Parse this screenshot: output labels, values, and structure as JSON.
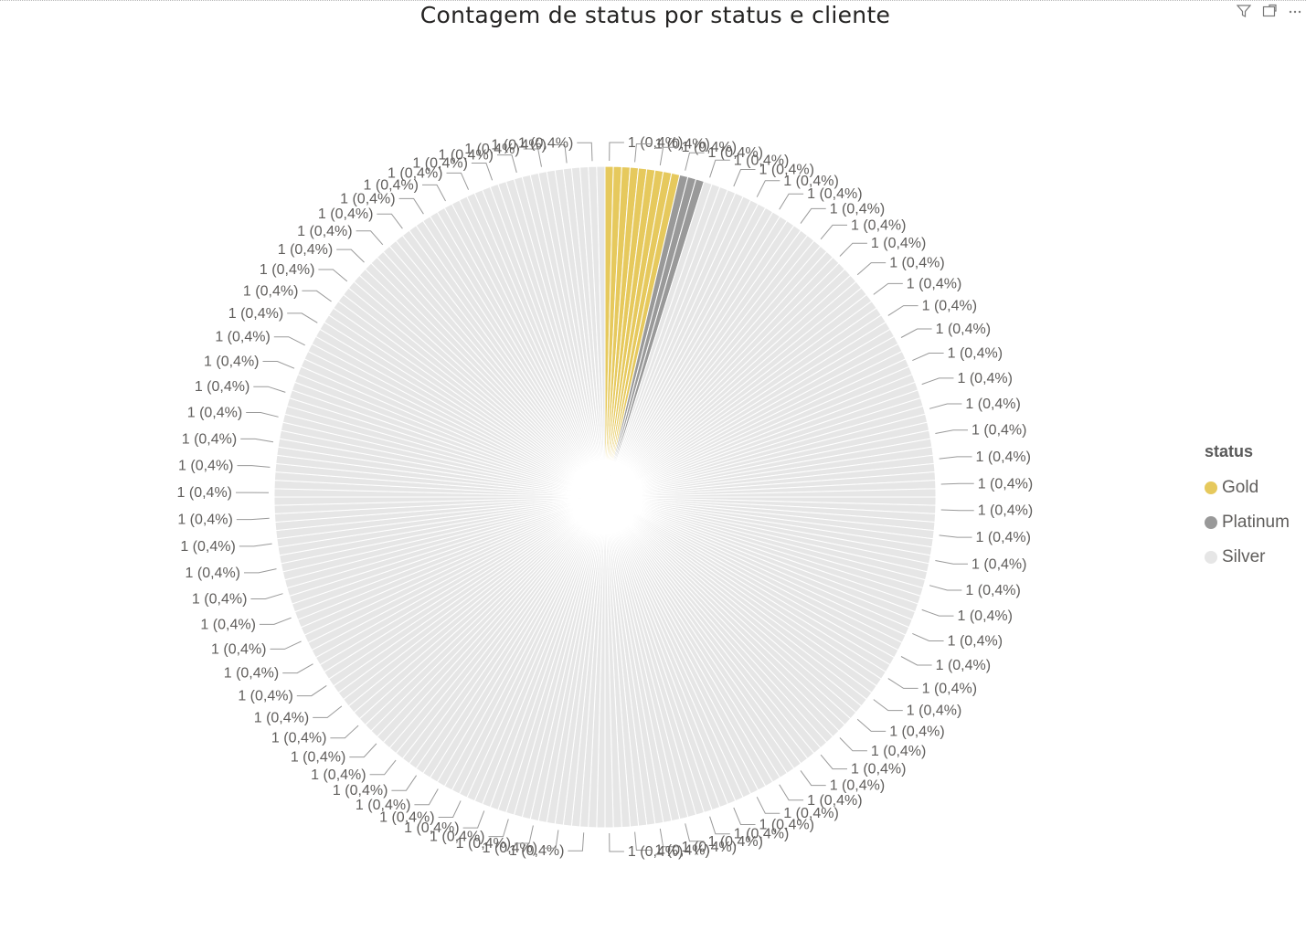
{
  "title": "Contagem de status por status e cliente",
  "header_icons": [
    "filter-icon",
    "focus-mode-icon",
    "more-options-icon"
  ],
  "legend": {
    "title": "status",
    "items": [
      {
        "label": "Gold",
        "color": "#E6C95D"
      },
      {
        "label": "Platinum",
        "color": "#999999"
      },
      {
        "label": "Silver",
        "color": "#E6E6E6"
      }
    ]
  },
  "chart_data": {
    "type": "pie",
    "title": "Contagem de status por status e cliente",
    "legend_title": "status",
    "legend_position": "right",
    "slice_value": 1,
    "slice_label": "1 (0,4%)",
    "series": [
      {
        "name": "Gold",
        "color": "#E6C95D",
        "slices": 9,
        "values_each": 1
      },
      {
        "name": "Platinum",
        "color": "#999999",
        "slices": 3,
        "values_each": 1
      },
      {
        "name": "Silver",
        "color": "#E6E6E6",
        "slices": 236,
        "values_each": 1
      }
    ],
    "total": 248
  }
}
